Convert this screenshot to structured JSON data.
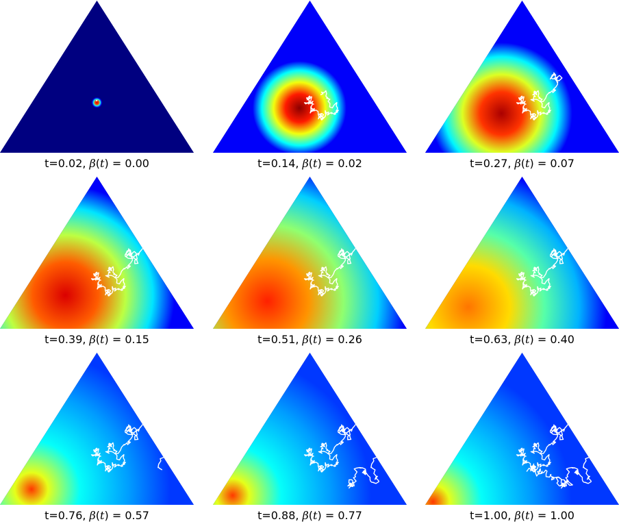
{
  "figure": {
    "panels": [
      {
        "t_label": "t=0.02,",
        "beta_label": "0.00",
        "beta": 0.0
      },
      {
        "t_label": "t=0.14,",
        "beta_label": "0.02",
        "beta": 0.02
      },
      {
        "t_label": "t=0.27,",
        "beta_label": "0.07",
        "beta": 0.07
      },
      {
        "t_label": "t=0.39,",
        "beta_label": "0.15",
        "beta": 0.15
      },
      {
        "t_label": "t=0.51,",
        "beta_label": "0.26",
        "beta": 0.26
      },
      {
        "t_label": "t=0.63,",
        "beta_label": "0.40",
        "beta": 0.4
      },
      {
        "t_label": "t=0.76,",
        "beta_label": "0.57",
        "beta": 0.57
      },
      {
        "t_label": "t=0.88,",
        "beta_label": "0.77",
        "beta": 0.77
      },
      {
        "t_label": "t=1.00,",
        "beta_label": "1.00",
        "beta": 1.0
      }
    ],
    "beta_symbol": "β",
    "beta_open": "(",
    "beta_var": "t",
    "beta_close": ") = ",
    "colormap": "jet",
    "background_color": "#00008f",
    "path_color": "#ffffff"
  }
}
